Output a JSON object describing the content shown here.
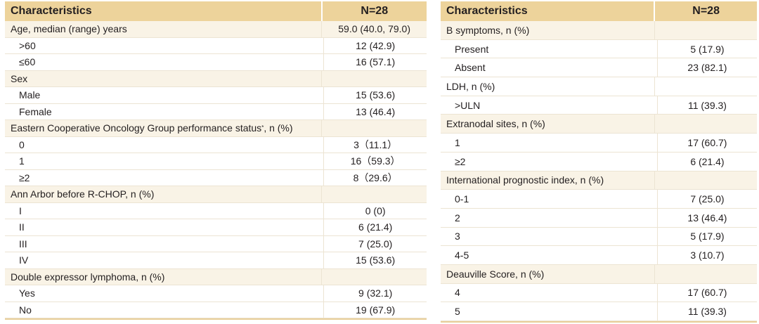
{
  "left": {
    "header": {
      "col1": "Characteristics",
      "col2": "N=28"
    },
    "rows": [
      {
        "kind": "sec",
        "label": "Age, median (range) years",
        "value": "59.0 (40.0, 79.0)"
      },
      {
        "kind": "item",
        "label": ">60",
        "value": "12 (42.9)"
      },
      {
        "kind": "item",
        "label": "≤60",
        "value": "16 (57.1)"
      },
      {
        "kind": "sec",
        "label": "Sex",
        "value": ""
      },
      {
        "kind": "item",
        "label": "Male",
        "value": "15 (53.6)"
      },
      {
        "kind": "item",
        "label": "Female",
        "value": "13 (46.4)"
      },
      {
        "kind": "sec",
        "label": "Eastern Cooperative Oncology Group performance status",
        "sup": "*",
        "suffix": ", n (%)",
        "value": ""
      },
      {
        "kind": "item",
        "label": "0",
        "value": "3（11.1）"
      },
      {
        "kind": "item",
        "label": "1",
        "value": "16（59.3）"
      },
      {
        "kind": "item",
        "label": "≥2",
        "value": "8（29.6）"
      },
      {
        "kind": "sec",
        "label": "Ann Arbor before R-CHOP, n (%)",
        "value": ""
      },
      {
        "kind": "item",
        "label": "I",
        "value": "0 (0)"
      },
      {
        "kind": "item",
        "label": "II",
        "value": "6 (21.4)"
      },
      {
        "kind": "item",
        "label": "III",
        "value": "7 (25.0)"
      },
      {
        "kind": "item",
        "label": "IV",
        "value": "15 (53.6)"
      },
      {
        "kind": "sec",
        "label": "Double expressor lymphoma, n (%)",
        "value": ""
      },
      {
        "kind": "item",
        "label": "Yes",
        "value": "9 (32.1)"
      },
      {
        "kind": "item",
        "label": "No",
        "value": "19 (67.9)"
      }
    ]
  },
  "right": {
    "header": {
      "col1": "Characteristics",
      "col2": "N=28"
    },
    "rows": [
      {
        "kind": "sec",
        "label": "B symptoms, n (%)",
        "value": ""
      },
      {
        "kind": "item",
        "label": "Present",
        "value": "5 (17.9)"
      },
      {
        "kind": "item",
        "label": "Absent",
        "value": "23 (82.1)"
      },
      {
        "kind": "item",
        "flat": true,
        "label": "LDH, n (%)",
        "value": ""
      },
      {
        "kind": "item",
        "label": ">ULN",
        "value": "11 (39.3)"
      },
      {
        "kind": "sec",
        "label": "Extranodal sites, n (%)",
        "value": ""
      },
      {
        "kind": "item",
        "label": "1",
        "value": "17 (60.7)"
      },
      {
        "kind": "item",
        "label": "≥2",
        "value": "6 (21.4)"
      },
      {
        "kind": "sec",
        "label": "International prognostic index, n (%)",
        "value": ""
      },
      {
        "kind": "item",
        "label": "0-1",
        "value": "7 (25.0)"
      },
      {
        "kind": "item",
        "label": "2",
        "value": "13 (46.4)"
      },
      {
        "kind": "item",
        "label": "3",
        "value": "5 (17.9)"
      },
      {
        "kind": "item",
        "label": "4-5",
        "value": "3 (10.7)"
      },
      {
        "kind": "sec",
        "label": "Deauville Score, n (%)",
        "value": ""
      },
      {
        "kind": "item",
        "label": "4",
        "value": "17 (60.7)"
      },
      {
        "kind": "item",
        "label": "5",
        "value": "11 (39.3)"
      }
    ]
  }
}
